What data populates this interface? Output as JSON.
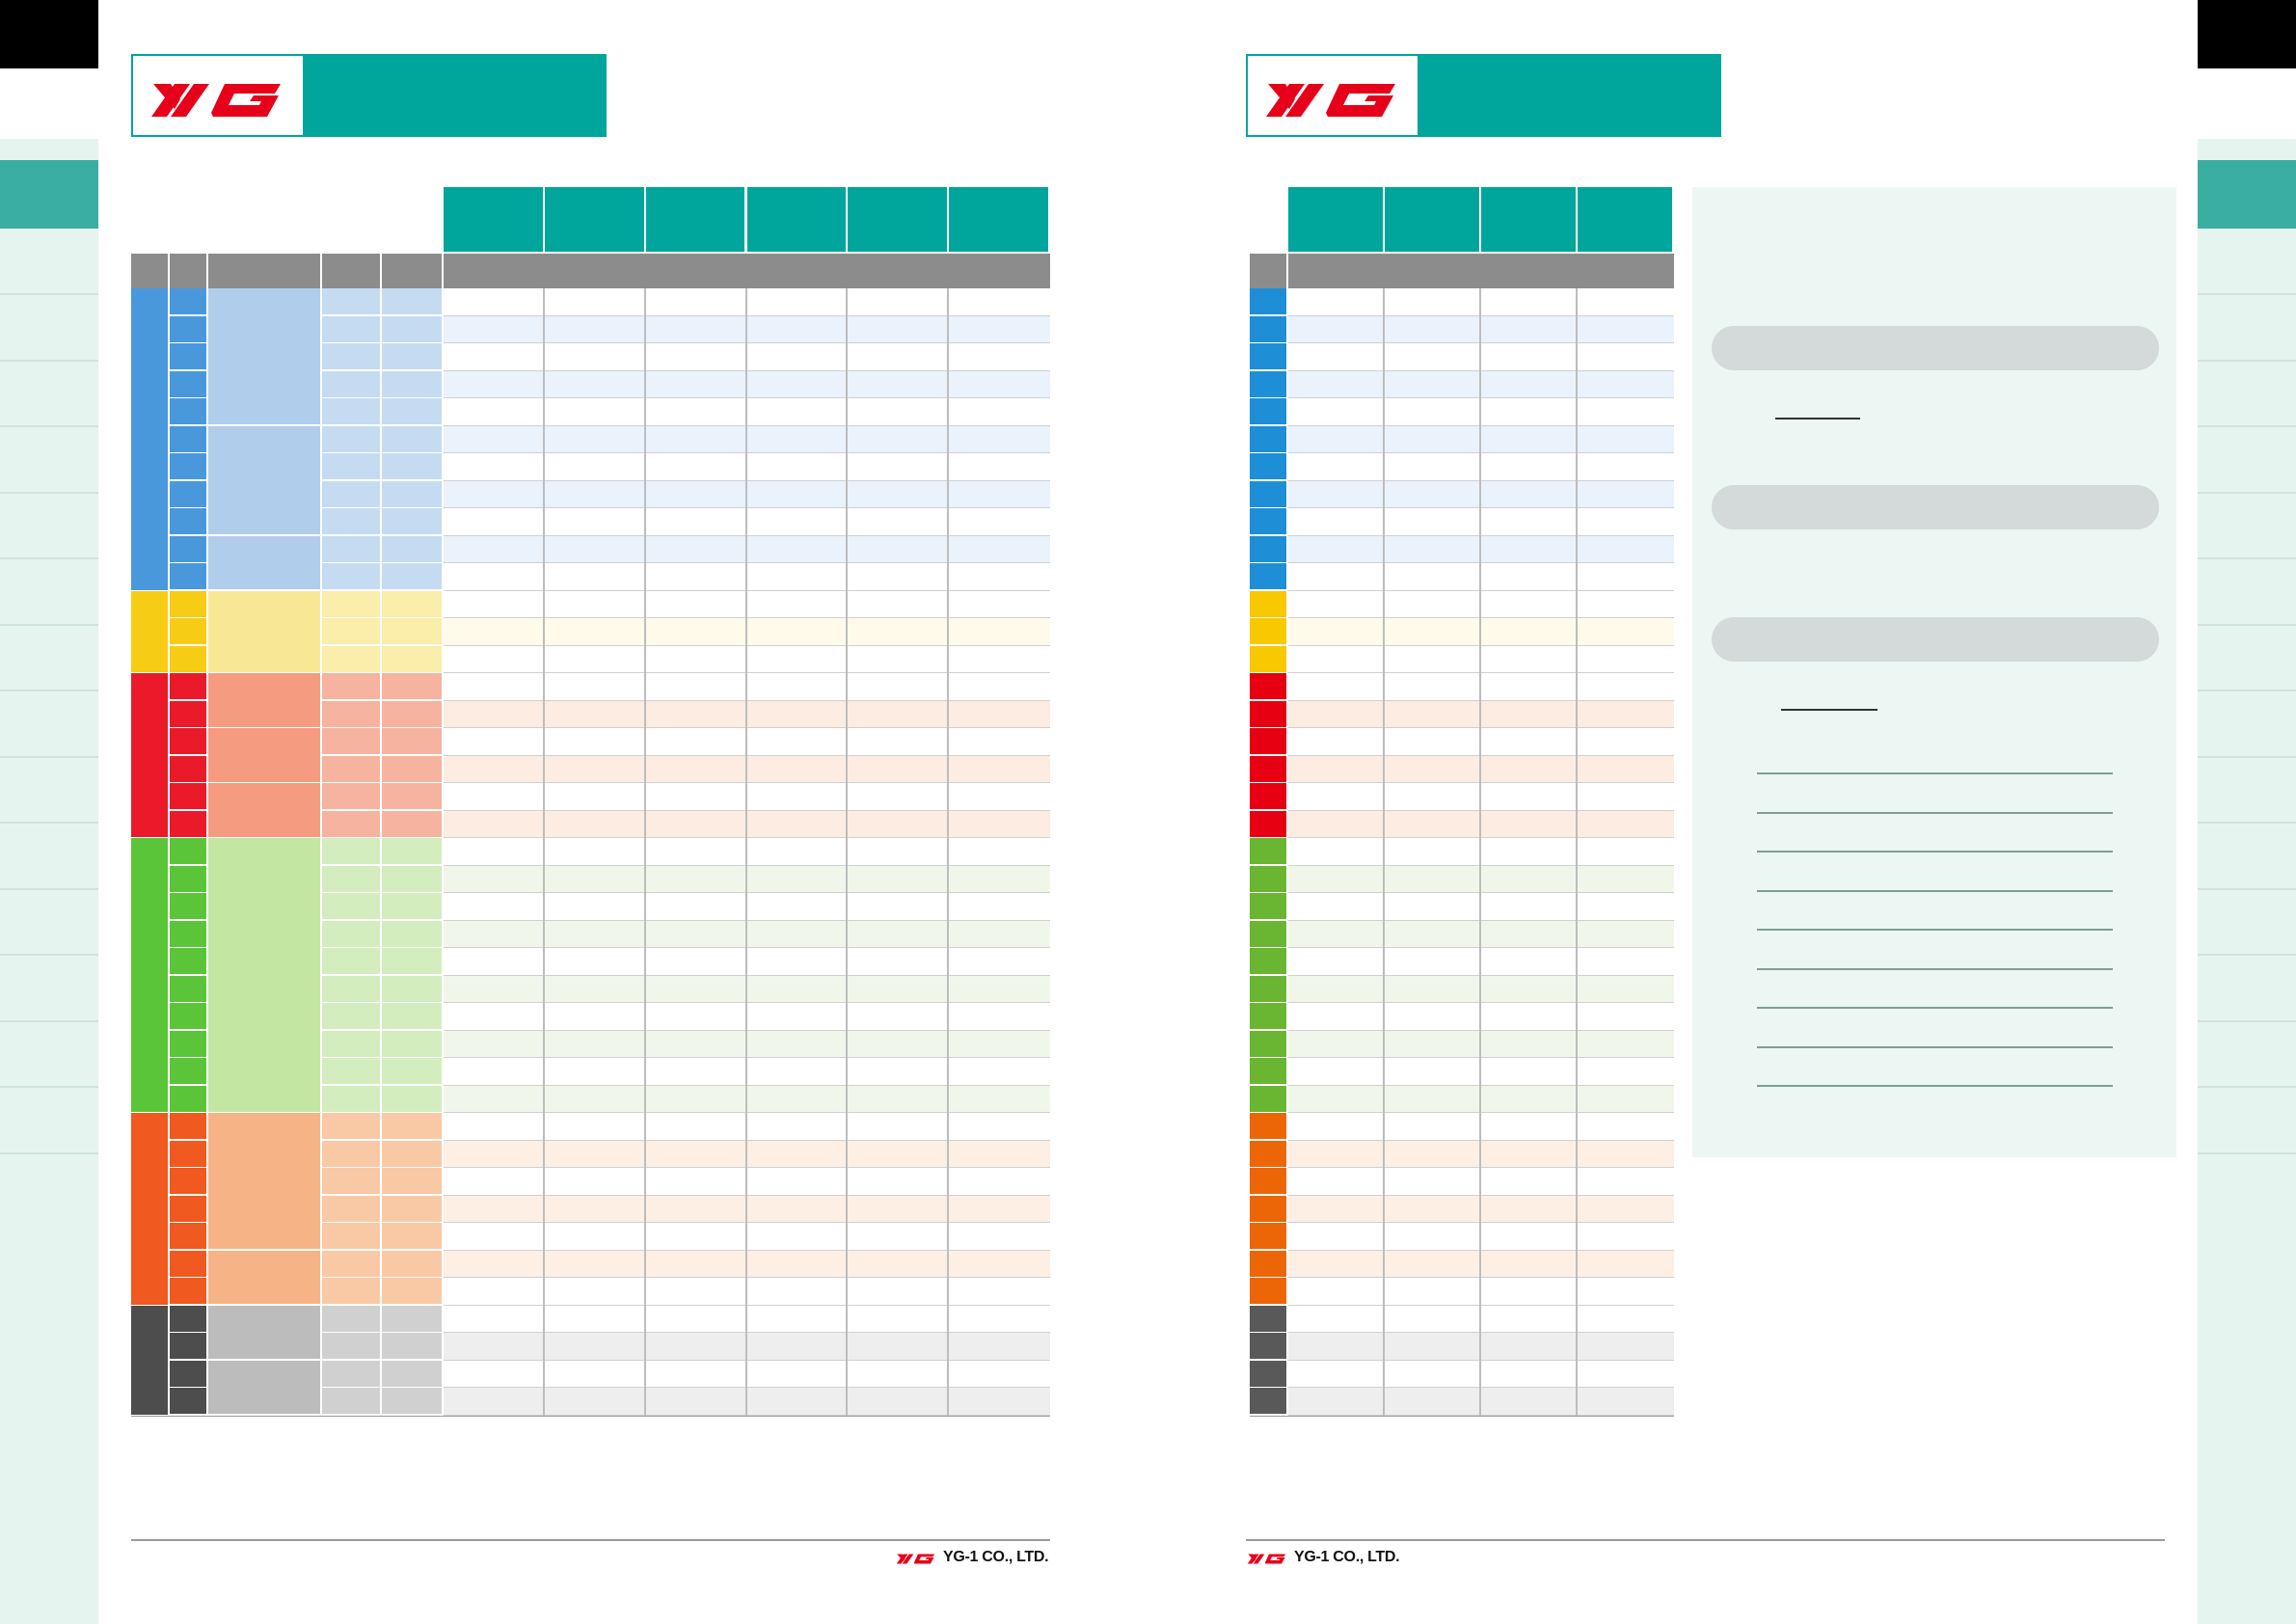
{
  "brand": {
    "logo_text": "YG",
    "company": "YG-1 CO., LTD.",
    "colors": {
      "teal": "#00a59b",
      "logo_red": "#e6001a",
      "header_gray": "#8c8c8c"
    }
  },
  "left_page": {
    "groups": [
      {
        "key": "P",
        "rows": 11,
        "strong": "#4a98dc",
        "mid": "#b0cdeb",
        "light": "#c5dbf2",
        "row_alt": "#eaf2fc"
      },
      {
        "key": "M",
        "rows": 3,
        "strong": "#f7cc14",
        "mid": "#f8e896",
        "light": "#fbedaa",
        "row_alt": "#fffaea"
      },
      {
        "key": "K",
        "rows": 6,
        "strong": "#ea1a2a",
        "mid": "#f49b80",
        "light": "#f6b39f",
        "row_alt": "#fcece2"
      },
      {
        "key": "N",
        "rows": 10,
        "strong": "#5bc53a",
        "mid": "#c3e7a2",
        "light": "#d4edbf",
        "row_alt": "#f0f7ea"
      },
      {
        "key": "S",
        "rows": 7,
        "strong": "#f0591f",
        "mid": "#f6b486",
        "light": "#f9c9a5",
        "row_alt": "#fdefe4"
      },
      {
        "key": "H",
        "rows": 4,
        "strong": "#4d4d4d",
        "mid": "#bcbcbc",
        "light": "#d0d0d0",
        "row_alt": "#eeeeee"
      }
    ],
    "data_columns": 6
  },
  "right_page": {
    "group_colors": [
      "#1e8fd6",
      "#f8c800",
      "#e60012",
      "#6ab531",
      "#ec6608",
      "#595959"
    ],
    "data_columns": 4
  },
  "footer": {
    "left_text": "YG-1 CO., LTD.",
    "right_text": "YG-1 CO., LTD."
  }
}
